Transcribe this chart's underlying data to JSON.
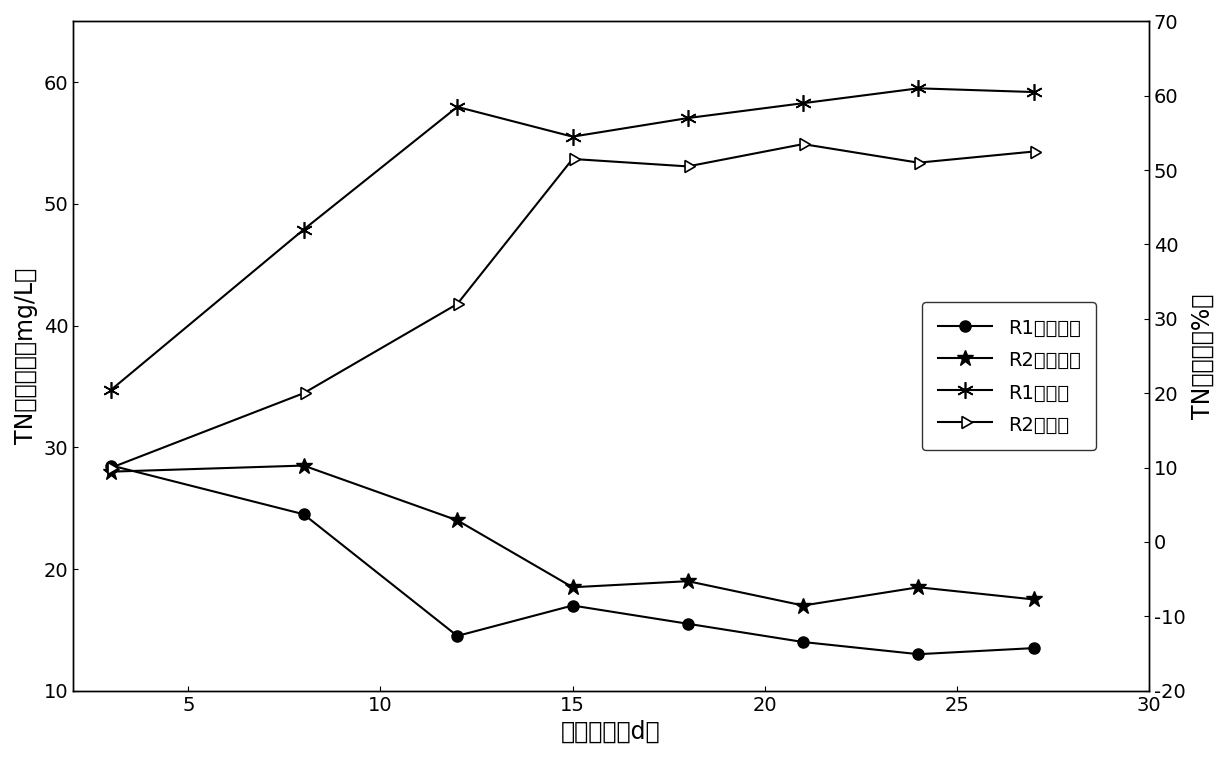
{
  "x": [
    3,
    8,
    12,
    15,
    18,
    21,
    24,
    27
  ],
  "R1_concentration": [
    28.5,
    24.5,
    14.5,
    17.0,
    15.5,
    14.0,
    13.0,
    13.5
  ],
  "R2_concentration": [
    28.0,
    28.5,
    24.0,
    18.5,
    19.0,
    17.0,
    18.5,
    17.5
  ],
  "R1_removal": [
    20.5,
    42.0,
    58.5,
    54.5,
    57.0,
    59.0,
    61.0,
    60.5
  ],
  "R2_removal": [
    10.0,
    20.0,
    32.0,
    51.5,
    50.5,
    53.5,
    51.0,
    52.5
  ],
  "xlabel": "运行时间（d）",
  "ylabel_left": "TN出水浓度（mg/L）",
  "ylabel_right": "TN去除率（%）",
  "legend_labels": [
    "R1出水浓度",
    "R2出水浓度",
    "R1去除率",
    "R2去除率"
  ],
  "xlim": [
    2,
    30
  ],
  "ylim_left": [
    10,
    65
  ],
  "ylim_right": [
    -20,
    70
  ],
  "xticks": [
    5,
    10,
    15,
    20,
    25,
    30
  ],
  "yticks_left": [
    10,
    20,
    30,
    40,
    50,
    60
  ],
  "yticks_right": [
    -20,
    -10,
    0,
    10,
    20,
    30,
    40,
    50,
    60,
    70
  ],
  "color": "#000000",
  "background": "#ffffff",
  "font_size_label": 17,
  "font_size_tick": 14,
  "font_size_legend": 14,
  "linewidth": 1.5
}
